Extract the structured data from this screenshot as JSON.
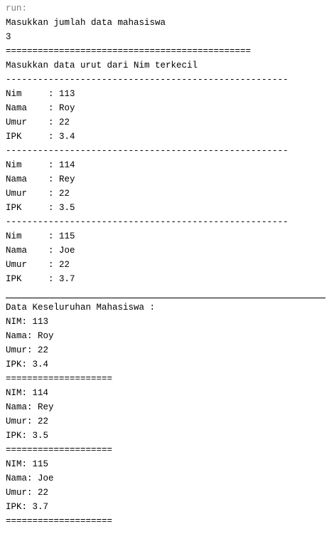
{
  "console": {
    "lines": [
      {
        "text": "run:",
        "kind": "run"
      },
      {
        "text": "Masukkan jumlah data mahasiswa"
      },
      {
        "text": "3"
      },
      {
        "text": "=============================================="
      },
      {
        "text": "Masukkan data urut dari Nim terkecil"
      },
      {
        "text": "-----------------------------------------------------"
      },
      {
        "text": "Nim     : 113"
      },
      {
        "text": "Nama    : Roy"
      },
      {
        "text": "Umur    : 22"
      },
      {
        "text": "IPK     : 3.4"
      },
      {
        "text": "-----------------------------------------------------"
      },
      {
        "text": "Nim     : 114"
      },
      {
        "text": "Nama    : Rey"
      },
      {
        "text": "Umur    : 22"
      },
      {
        "text": "IPK     : 3.5"
      },
      {
        "text": "-----------------------------------------------------"
      },
      {
        "text": "Nim     : 115"
      },
      {
        "text": "Nama    : Joe"
      },
      {
        "text": "Umur    : 22"
      },
      {
        "text": "IPK     : 3.7"
      },
      {
        "text": "",
        "kind": "rule"
      },
      {
        "text": "Data Keseluruhan Mahasiswa :"
      },
      {
        "text": "NIM: 113"
      },
      {
        "text": "Nama: Roy"
      },
      {
        "text": "Umur: 22"
      },
      {
        "text": "IPK: 3.4"
      },
      {
        "text": "===================="
      },
      {
        "text": "NIM: 114"
      },
      {
        "text": "Nama: Rey"
      },
      {
        "text": "Umur: 22"
      },
      {
        "text": "IPK: 3.5"
      },
      {
        "text": "===================="
      },
      {
        "text": "NIM: 115"
      },
      {
        "text": "Nama: Joe"
      },
      {
        "text": "Umur: 22"
      },
      {
        "text": "IPK: 3.7"
      },
      {
        "text": "===================="
      }
    ]
  }
}
